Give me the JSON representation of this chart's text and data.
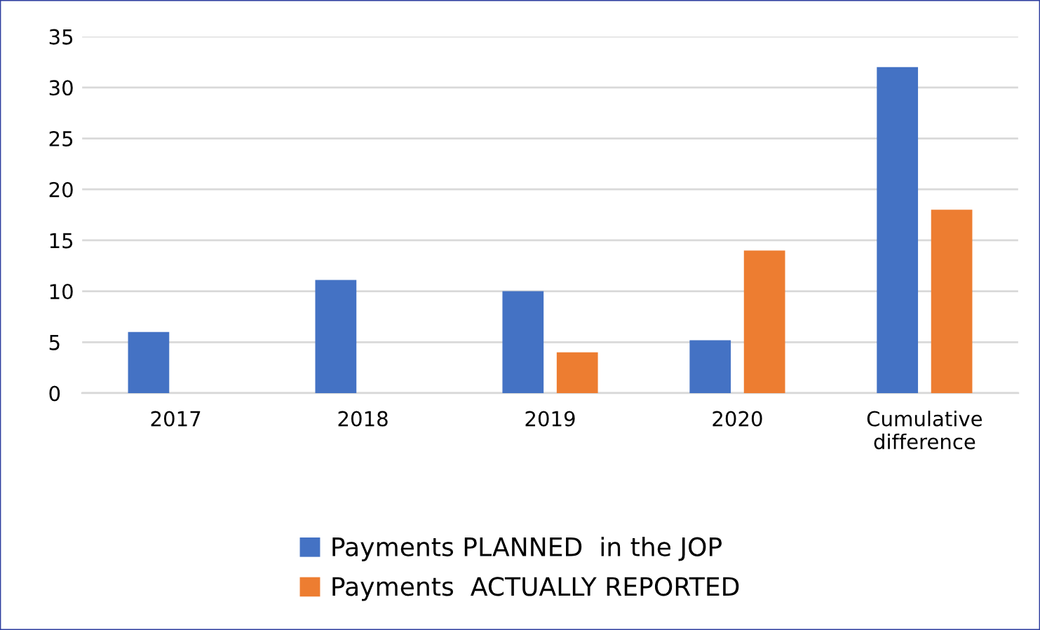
{
  "chart_data": {
    "type": "bar",
    "categories": [
      "2017",
      "2018",
      "2019",
      "2020",
      "Cumulative\ndifference"
    ],
    "series": [
      {
        "name": "Payments PLANNED  in the JOP",
        "color": "#4472c4",
        "values": [
          6,
          11.1,
          10,
          5.2,
          32
        ]
      },
      {
        "name": "Payments  ACTUALLY REPORTED",
        "color": "#ed7d31",
        "values": [
          null,
          null,
          4,
          14,
          18
        ]
      }
    ],
    "ylim": [
      0,
      35
    ],
    "yticks": [
      0,
      5,
      10,
      15,
      20,
      25,
      30,
      35
    ],
    "grid": "y",
    "legend": "bottom"
  }
}
